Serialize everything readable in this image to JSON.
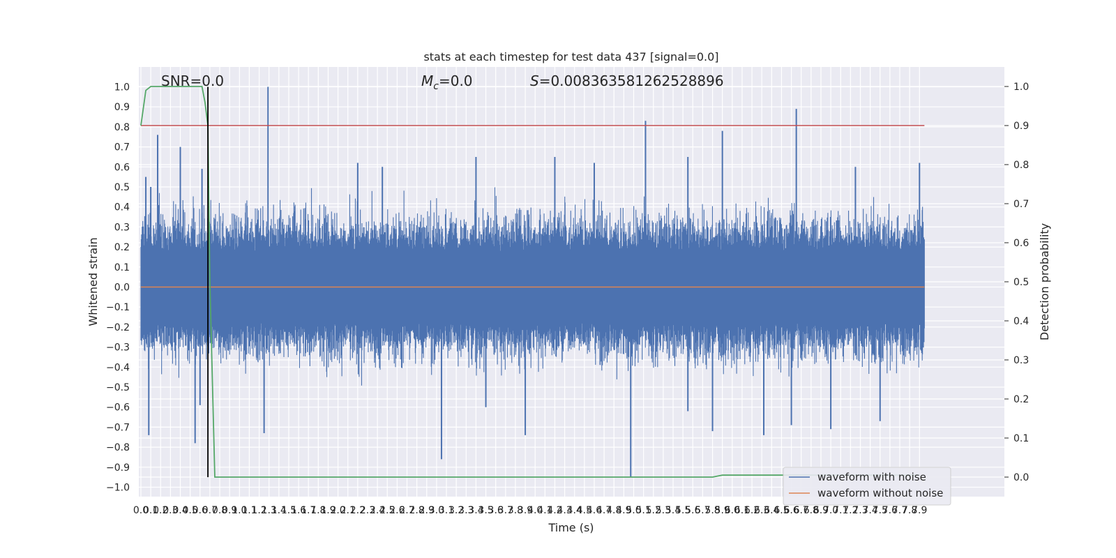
{
  "chart_data": {
    "type": "line",
    "title": "stats at each timestep for test data 437 [signal=0.0]",
    "xlabel": "Time (s)",
    "ylabel": "Whitened strain",
    "ylabel_right": "Detection probability",
    "xlim": [
      0.0,
      7.95
    ],
    "ylim": [
      -1.05,
      1.05
    ],
    "ylim_right": [
      -0.05,
      1.05
    ],
    "grid": true,
    "legend_position": "lower-right",
    "annotations": {
      "snr": "SNR=0.0",
      "mc_symbol": "M",
      "mc_sub": "c",
      "mc_value": "=0.0",
      "s_symbol": "S",
      "s_value": "=0.008363581262528896"
    },
    "x_tick_labels": [
      "0.0",
      "0.1",
      "0.2",
      "0.3",
      "0.4",
      "0.5",
      "0.6",
      "0.7",
      "0.8",
      "0.9",
      "1.0",
      "1.1",
      "1.2",
      "1.3",
      "1.4",
      "1.5",
      "1.6",
      "1.7",
      "1.8",
      "1.9",
      "2.0",
      "2.1",
      "2.2",
      "2.3",
      "2.4",
      "2.5",
      "2.6",
      "2.7",
      "2.8",
      "2.9",
      "3.0",
      "3.1",
      "3.2",
      "3.3",
      "3.4",
      "3.5",
      "3.6",
      "3.7",
      "3.8",
      "3.9",
      "4.0",
      "4.1",
      "4.2",
      "4.3",
      "4.4",
      "4.5",
      "4.6",
      "4.7",
      "4.8",
      "4.9",
      "5.0",
      "5.1",
      "5.2",
      "5.3",
      "5.4",
      "5.5",
      "5.6",
      "5.7",
      "5.8",
      "5.9",
      "6.0",
      "6.1",
      "6.2",
      "6.3",
      "6.4",
      "6.5",
      "6.6",
      "6.7",
      "6.8",
      "6.9",
      "7.0",
      "7.1",
      "7.2",
      "7.3",
      "7.4",
      "7.5",
      "7.6",
      "7.7",
      "7.8",
      "7.9"
    ],
    "y_tick_labels": [
      "1.0",
      "0.9",
      "0.8",
      "0.7",
      "0.6",
      "0.5",
      "0.4",
      "0.3",
      "0.2",
      "0.1",
      "0.0",
      "-0.1",
      "-0.2",
      "-0.3",
      "-0.4",
      "-0.5",
      "-0.6",
      "-0.7",
      "-0.8",
      "-0.9",
      "-1.0"
    ],
    "y_right_tick_labels": [
      "1.0",
      "0.9",
      "0.8",
      "0.7",
      "0.6",
      "0.5",
      "0.4",
      "0.3",
      "0.2",
      "0.1",
      "0.0"
    ],
    "series": [
      {
        "name": "waveform with noise",
        "color": "#4c72b0",
        "description_kind": "noise",
        "peaks_positive": [
          [
            0.05,
            0.55
          ],
          [
            0.1,
            0.5
          ],
          [
            0.17,
            0.76
          ],
          [
            0.4,
            0.7
          ],
          [
            0.62,
            0.59
          ],
          [
            0.69,
            0.3
          ],
          [
            1.29,
            1.0
          ],
          [
            2.2,
            0.62
          ],
          [
            2.45,
            0.6
          ],
          [
            3.4,
            0.65
          ],
          [
            4.2,
            0.65
          ],
          [
            4.6,
            0.62
          ],
          [
            5.12,
            0.83
          ],
          [
            5.55,
            0.65
          ],
          [
            5.9,
            0.78
          ],
          [
            6.65,
            0.89
          ],
          [
            7.25,
            0.6
          ],
          [
            7.9,
            0.62
          ]
        ],
        "peaks_negative": [
          [
            0.08,
            -0.74
          ],
          [
            0.55,
            -0.78
          ],
          [
            0.6,
            -0.59
          ],
          [
            1.25,
            -0.73
          ],
          [
            3.05,
            -0.86
          ],
          [
            3.5,
            -0.6
          ],
          [
            3.9,
            -0.74
          ],
          [
            4.97,
            -0.95
          ],
          [
            5.55,
            -0.62
          ],
          [
            5.8,
            -0.72
          ],
          [
            6.32,
            -0.74
          ],
          [
            6.6,
            -0.69
          ],
          [
            7.0,
            -0.71
          ],
          [
            7.5,
            -0.67
          ]
        ]
      },
      {
        "name": "waveform without noise",
        "color": "#dd8452",
        "x": [
          0.0,
          7.95
        ],
        "y": [
          0.0,
          0.0
        ]
      },
      {
        "name": "",
        "axis": "right",
        "color": "#55a868",
        "x": [
          0.0,
          0.05,
          0.1,
          0.15,
          0.2,
          0.3,
          0.4,
          0.5,
          0.6,
          0.62,
          0.65,
          0.68,
          0.7,
          0.75,
          1.0,
          2.0,
          3.0,
          4.0,
          5.0,
          5.8,
          5.9,
          6.0,
          7.0,
          7.9
        ],
        "y": [
          0.9,
          0.99,
          1.0,
          1.0,
          1.0,
          1.0,
          1.0,
          1.0,
          1.0,
          1.0,
          0.96,
          0.9,
          0.5,
          0.0,
          0.0,
          0.0,
          0.0,
          0.0,
          0.0,
          0.0,
          0.005,
          0.005,
          0.005,
          0.005
        ]
      },
      {
        "name": "",
        "axis": "right",
        "color": "#c44e52",
        "x": [
          0.0,
          7.95
        ],
        "y": [
          0.9,
          0.9
        ]
      },
      {
        "name": "",
        "color": "#000000",
        "kind": "vertical-line",
        "x": [
          0.68,
          0.68
        ],
        "y": [
          -0.95,
          1.0
        ]
      }
    ]
  }
}
